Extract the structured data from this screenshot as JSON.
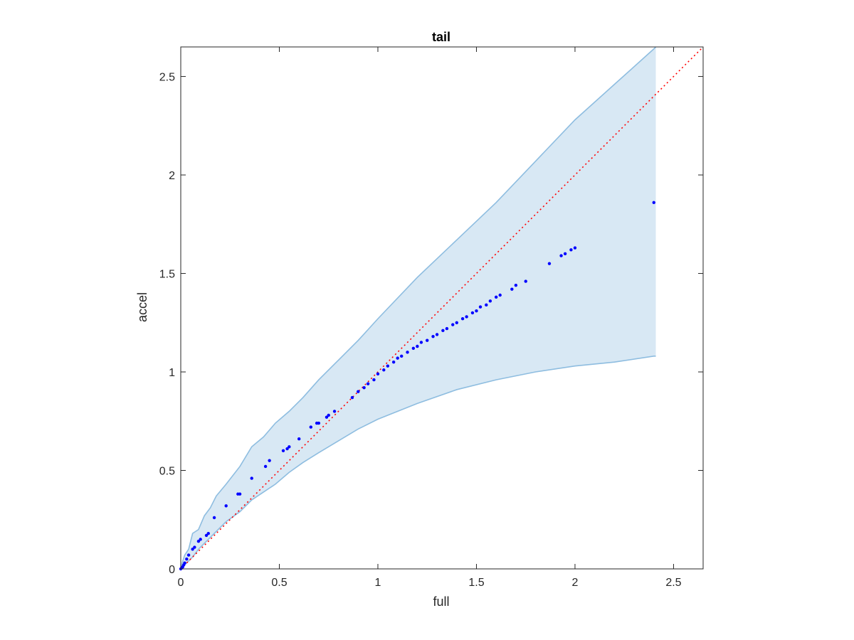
{
  "chart_data": {
    "type": "scatter",
    "title": "tail",
    "xlabel": "full",
    "ylabel": "accel",
    "xlim": [
      0,
      2.65
    ],
    "ylim": [
      0,
      2.65
    ],
    "xticks": [
      0,
      0.5,
      1,
      1.5,
      2,
      2.5
    ],
    "yticks": [
      0,
      0.5,
      1,
      1.5,
      2,
      2.5
    ],
    "xtick_labels": [
      "0",
      "0.5",
      "1",
      "1.5",
      "2",
      "2.5"
    ],
    "ytick_labels": [
      "0",
      "0.5",
      "1",
      "1.5",
      "2",
      "2.5"
    ],
    "grid": false,
    "colors": {
      "points": "#0000ff",
      "band_fill": "#d8e8f4",
      "band_edge": "#8ebde0",
      "reference": "#ff0000",
      "axes": "#262626"
    },
    "reference_line": {
      "style": "dotted",
      "x": [
        0,
        2.65
      ],
      "y": [
        0,
        2.65
      ]
    },
    "band": {
      "x": [
        0.0,
        0.01,
        0.02,
        0.04,
        0.06,
        0.09,
        0.12,
        0.15,
        0.18,
        0.23,
        0.3,
        0.36,
        0.42,
        0.48,
        0.55,
        0.62,
        0.7,
        0.8,
        0.9,
        1.0,
        1.2,
        1.4,
        1.6,
        1.8,
        2.0,
        2.2,
        2.4,
        2.41
      ],
      "upper": [
        0.0,
        0.04,
        0.07,
        0.1,
        0.18,
        0.2,
        0.27,
        0.31,
        0.37,
        0.43,
        0.52,
        0.62,
        0.67,
        0.74,
        0.8,
        0.87,
        0.96,
        1.06,
        1.16,
        1.27,
        1.48,
        1.67,
        1.86,
        2.07,
        2.28,
        2.46,
        2.64,
        2.65
      ],
      "lower": [
        0.0,
        0.01,
        0.02,
        0.04,
        0.06,
        0.1,
        0.13,
        0.16,
        0.19,
        0.24,
        0.29,
        0.35,
        0.39,
        0.43,
        0.49,
        0.54,
        0.59,
        0.65,
        0.71,
        0.76,
        0.84,
        0.91,
        0.96,
        1.0,
        1.03,
        1.05,
        1.08,
        1.08
      ]
    },
    "series": [
      {
        "x": [
          0.0,
          0.005,
          0.01,
          0.015,
          0.02,
          0.03,
          0.04,
          0.06,
          0.07,
          0.09,
          0.1,
          0.13,
          0.14,
          0.17,
          0.23,
          0.29,
          0.3,
          0.36,
          0.43,
          0.45,
          0.52,
          0.54,
          0.55,
          0.6,
          0.66,
          0.69,
          0.7,
          0.74,
          0.75,
          0.78,
          0.87,
          0.9,
          0.93,
          0.95,
          0.98,
          1.0,
          1.03,
          1.05,
          1.08,
          1.1,
          1.12,
          1.15,
          1.18,
          1.2,
          1.22,
          1.25,
          1.28,
          1.3,
          1.33,
          1.35,
          1.38,
          1.4,
          1.43,
          1.45,
          1.48,
          1.5,
          1.52,
          1.55,
          1.57,
          1.6,
          1.62,
          1.68,
          1.7,
          1.75,
          1.87,
          1.93,
          1.95,
          1.98,
          2.0,
          2.4
        ],
        "y": [
          0.0,
          0.005,
          0.01,
          0.02,
          0.03,
          0.05,
          0.07,
          0.1,
          0.11,
          0.14,
          0.15,
          0.17,
          0.18,
          0.26,
          0.32,
          0.38,
          0.38,
          0.46,
          0.52,
          0.55,
          0.6,
          0.61,
          0.62,
          0.66,
          0.72,
          0.74,
          0.74,
          0.77,
          0.78,
          0.8,
          0.87,
          0.9,
          0.92,
          0.94,
          0.96,
          0.99,
          1.01,
          1.03,
          1.05,
          1.07,
          1.08,
          1.1,
          1.12,
          1.13,
          1.15,
          1.16,
          1.18,
          1.19,
          1.21,
          1.22,
          1.24,
          1.25,
          1.27,
          1.28,
          1.3,
          1.31,
          1.33,
          1.34,
          1.36,
          1.38,
          1.39,
          1.42,
          1.44,
          1.46,
          1.55,
          1.59,
          1.6,
          1.62,
          1.63,
          1.86
        ]
      }
    ]
  }
}
